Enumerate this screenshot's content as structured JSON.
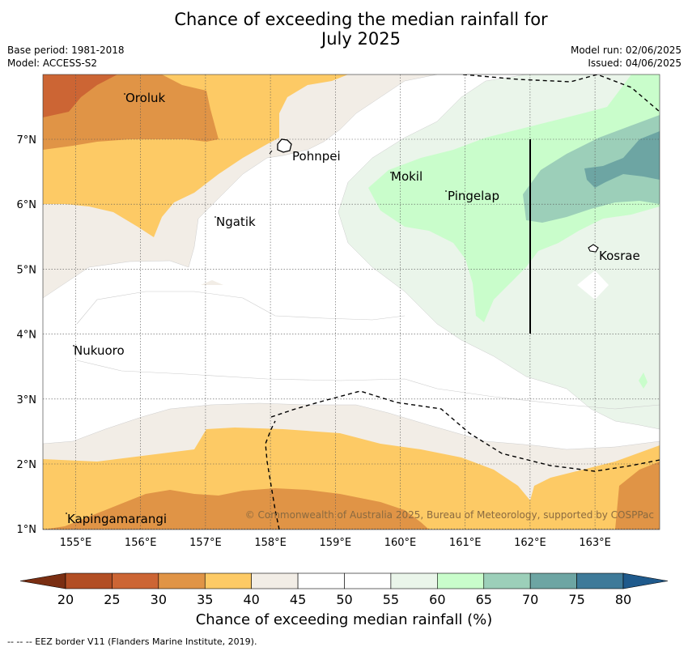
{
  "title_line1": "Chance of exceeding the median rainfall for",
  "title_line2": "July 2025",
  "base_period": "Base period: 1981-2018",
  "model": "Model: ACCESS-S2",
  "model_run": "Model run: 02/06/2025",
  "issued": "Issued: 04/06/2025",
  "copyright": "© Commonwealth of Australia 2025, Bureau of Meteorology, supported by COSPPac",
  "colorbar_label": "Chance of exceeding median rainfall (%)",
  "eez_note": "--  --  -- EEZ border V11 (Flanders Marine Institute, 2019).",
  "lon_ticks": [
    "155°E",
    "156°E",
    "157°E",
    "158°E",
    "159°E",
    "160°E",
    "161°E",
    "162°E",
    "163°E"
  ],
  "lat_ticks": [
    "7°N",
    "6°N",
    "5°N",
    "4°N",
    "3°N",
    "2°N",
    "1°N"
  ],
  "places": [
    {
      "name": "Oroluk"
    },
    {
      "name": "Pohnpei"
    },
    {
      "name": "Mokil"
    },
    {
      "name": "Pingelap"
    },
    {
      "name": "Ngatik"
    },
    {
      "name": "Kosrae"
    },
    {
      "name": "Nukuoro"
    },
    {
      "name": "Kapingamarangi"
    }
  ],
  "colorbar": {
    "ticks": [
      "20",
      "25",
      "30",
      "35",
      "40",
      "45",
      "50",
      "55",
      "60",
      "65",
      "70",
      "75",
      "80"
    ],
    "colors": {
      "below20": "#7a2e12",
      "20-25": "#b24e24",
      "25-30": "#cc6534",
      "30-35": "#e09446",
      "35-40": "#fdca65",
      "40-45": "#f2ede6",
      "45-50": "#ffffff",
      "50-55": "#ffffff",
      "55-60": "#eaf5ea",
      "60-65": "#c9fdcb",
      "65-70": "#9ccfb9",
      "70-75": "#6da5a3",
      "75-80": "#3e7a99",
      "above80": "#1f5a8c"
    }
  }
}
